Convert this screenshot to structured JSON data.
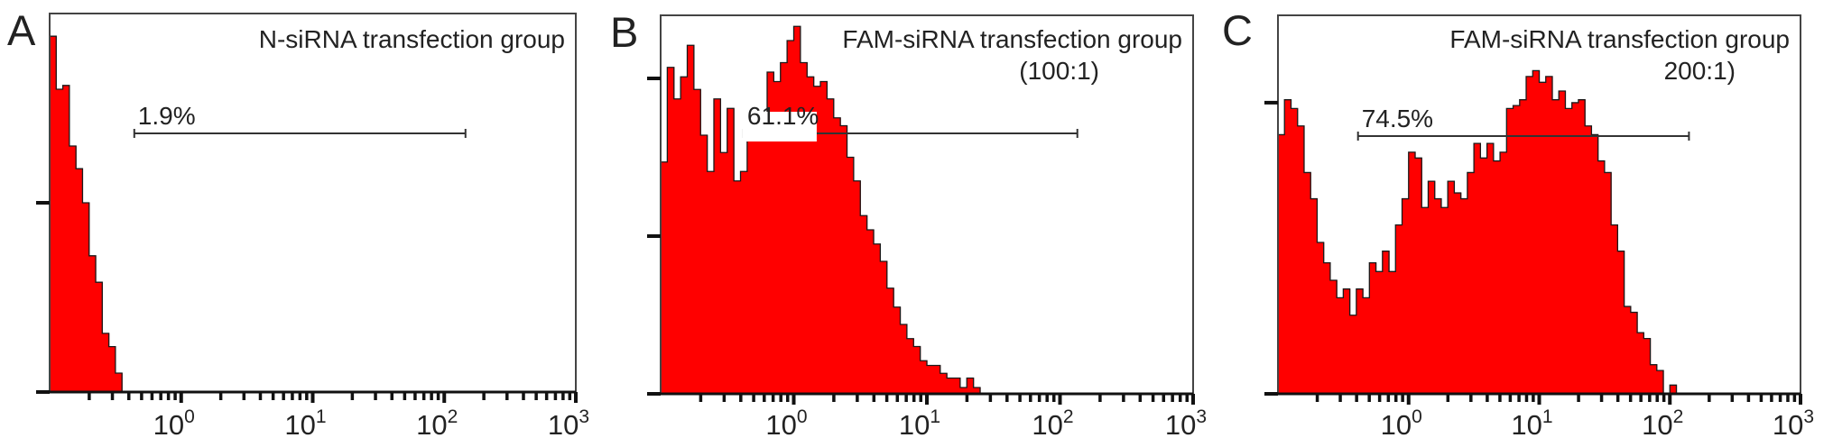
{
  "chart_data": [
    {
      "type": "histogram",
      "panel_label": "A",
      "title_lines": [
        "N-siRNA transfection group"
      ],
      "x_scale": "log",
      "xlim": [
        0.1,
        1000
      ],
      "x_ticks": [
        {
          "base": "10",
          "exp": "0",
          "value": 1
        },
        {
          "base": "10",
          "exp": "1",
          "value": 10
        },
        {
          "base": "10",
          "exp": "2",
          "value": 100
        },
        {
          "base": "10",
          "exp": "3",
          "value": 1000
        }
      ],
      "ylim": [
        0,
        200
      ],
      "y_ticks": [
        0,
        100
      ],
      "bin_start_log10": -1.0,
      "bin_width_log10": 0.05,
      "counts": [
        188,
        160,
        162,
        130,
        118,
        100,
        72,
        58,
        31,
        24,
        10
      ],
      "gate": {
        "label": "1.9%",
        "x_range": [
          0.44,
          145
        ],
        "label_boxed": false
      }
    },
    {
      "type": "histogram",
      "panel_label": "B",
      "title_lines": [
        "FAM-siRNA transfection group",
        "(100:1)"
      ],
      "x_scale": "log",
      "xlim": [
        0.1,
        1000
      ],
      "x_ticks": [
        {
          "base": "10",
          "exp": "0",
          "value": 1
        },
        {
          "base": "10",
          "exp": "1",
          "value": 10
        },
        {
          "base": "10",
          "exp": "2",
          "value": 100
        },
        {
          "base": "10",
          "exp": "3",
          "value": 1000
        }
      ],
      "ylim": [
        0,
        240
      ],
      "y_ticks": [
        0,
        100,
        200
      ],
      "bin_start_log10": -1.0,
      "bin_width_log10": 0.05,
      "counts": [
        147,
        207,
        187,
        201,
        221,
        193,
        164,
        141,
        187,
        153,
        181,
        135,
        141,
        164,
        161,
        170,
        204,
        198,
        210,
        224,
        233,
        210,
        201,
        195,
        198,
        187,
        175,
        170,
        150,
        135,
        113,
        104,
        95,
        84,
        67,
        55,
        44,
        35,
        30,
        21,
        18,
        18,
        13,
        10,
        10,
        4,
        10,
        4
      ],
      "gate": {
        "label": "61.1%",
        "x_range": [
          0.42,
          135
        ],
        "label_boxed": true
      }
    },
    {
      "type": "histogram",
      "panel_label": "C",
      "title_lines": [
        "FAM-siRNA transfection group",
        "200:1)"
      ],
      "x_scale": "log",
      "xlim": [
        0.1,
        1000
      ],
      "x_ticks": [
        {
          "base": "10",
          "exp": "0",
          "value": 1
        },
        {
          "base": "10",
          "exp": "1",
          "value": 10
        },
        {
          "base": "10",
          "exp": "2",
          "value": 100
        },
        {
          "base": "10",
          "exp": "3",
          "value": 1000
        }
      ],
      "ylim": [
        0,
        130
      ],
      "y_ticks": [
        0,
        100
      ],
      "bin_start_log10": -1.0,
      "bin_width_log10": 0.05,
      "counts": [
        89,
        101,
        98,
        92,
        76,
        67,
        52,
        45,
        39,
        33,
        36,
        27,
        36,
        33,
        45,
        42,
        49,
        42,
        58,
        67,
        83,
        81,
        64,
        73,
        67,
        64,
        73,
        69,
        67,
        76,
        86,
        81,
        86,
        80,
        83,
        98,
        99,
        101,
        109,
        111,
        107,
        109,
        101,
        104,
        98,
        100,
        101,
        92,
        89,
        80,
        76,
        58,
        49,
        30,
        28,
        21,
        19,
        10,
        8,
        0,
        3
      ],
      "gate": {
        "label": "74.5%",
        "x_range": [
          0.41,
          140
        ],
        "label_boxed": false
      }
    }
  ],
  "colors": {
    "fill": "#ff0000",
    "outline": "#1a1a1a",
    "axis": "#444444"
  }
}
